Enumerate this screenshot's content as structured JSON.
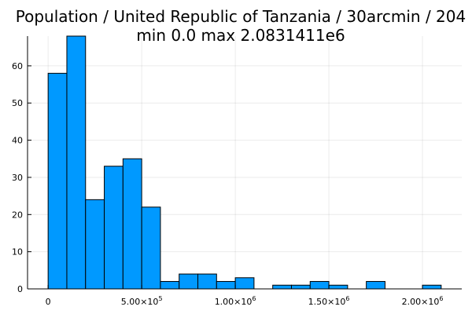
{
  "chart_data": {
    "type": "bar",
    "title": "Population / United Republic of Tanzania / 30arcmin / 204",
    "subtitle": "min 0.0  max 2.0831411e6",
    "bar_color": "#0099ff",
    "bin_width": 100000,
    "bins": [
      {
        "x_start": 0,
        "value": 58
      },
      {
        "x_start": 100000,
        "value": 68
      },
      {
        "x_start": 200000,
        "value": 24
      },
      {
        "x_start": 300000,
        "value": 33
      },
      {
        "x_start": 400000,
        "value": 35
      },
      {
        "x_start": 500000,
        "value": 22
      },
      {
        "x_start": 600000,
        "value": 2
      },
      {
        "x_start": 700000,
        "value": 4
      },
      {
        "x_start": 800000,
        "value": 4
      },
      {
        "x_start": 900000,
        "value": 2
      },
      {
        "x_start": 1000000,
        "value": 3
      },
      {
        "x_start": 1100000,
        "value": 0
      },
      {
        "x_start": 1200000,
        "value": 1
      },
      {
        "x_start": 1300000,
        "value": 1
      },
      {
        "x_start": 1400000,
        "value": 2
      },
      {
        "x_start": 1500000,
        "value": 1
      },
      {
        "x_start": 1600000,
        "value": 0
      },
      {
        "x_start": 1700000,
        "value": 2
      },
      {
        "x_start": 1800000,
        "value": 0
      },
      {
        "x_start": 1900000,
        "value": 0
      },
      {
        "x_start": 2000000,
        "value": 1
      }
    ],
    "xlim": [
      -110000,
      2210000
    ],
    "ylim": [
      0,
      68
    ],
    "x_ticks": [
      {
        "value": 0,
        "mantissa": "0",
        "exp": ""
      },
      {
        "value": 500000,
        "mantissa": "5.00×10",
        "exp": "5"
      },
      {
        "value": 1000000,
        "mantissa": "1.00×10",
        "exp": "6"
      },
      {
        "value": 1500000,
        "mantissa": "1.50×10",
        "exp": "6"
      },
      {
        "value": 2000000,
        "mantissa": "2.00×10",
        "exp": "6"
      }
    ],
    "y_ticks": [
      0,
      10,
      20,
      30,
      40,
      50,
      60
    ],
    "grid": true,
    "legend": "none"
  }
}
